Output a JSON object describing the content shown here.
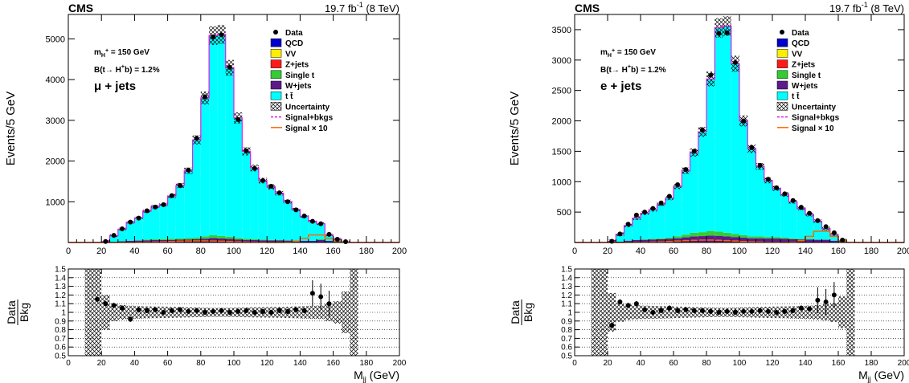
{
  "chart_data": [
    {
      "type": "bar",
      "header_left": "CMS",
      "header_lumi": "19.7 fb",
      "header_lumi_exp": "-1",
      "header_energy": " (8 TeV)",
      "ylabel": "Events/5 GeV",
      "ratio_ylabel_num": "Data",
      "ratio_ylabel_den": "Bkg",
      "xlabel": "M",
      "xlabel_sub": "jj",
      "xlabel_unit": " (GeV)",
      "annotations": {
        "mass": "m",
        "mass_sub": "H",
        "mass_sup": "+",
        "mass_rest": " = 150 GeV",
        "br": "B(t→ H",
        "br_sup": "+",
        "br_rest": "b) = 1.2%",
        "channel": "μ + jets"
      },
      "xlim": [
        0,
        200
      ],
      "ylim": [
        0,
        5600
      ],
      "ratio_ylim": [
        0.5,
        1.5
      ],
      "xticks": [
        0,
        20,
        40,
        60,
        80,
        100,
        120,
        140,
        160,
        180,
        200
      ],
      "yticks": [
        1000,
        2000,
        3000,
        4000,
        5000
      ],
      "ratio_yticks": [
        0.5,
        0.6,
        0.7,
        0.8,
        0.9,
        1,
        1.1,
        1.2,
        1.3,
        1.4,
        1.5
      ],
      "ratio_ytick_labels": [
        "0.5",
        "0.6",
        "0.7",
        "0.8",
        "0.9",
        "1",
        "1.1",
        "1.2",
        "1.3",
        "1.4",
        "1.5"
      ],
      "legend": [
        {
          "label": "Data",
          "kind": "marker",
          "color": "#000000"
        },
        {
          "label": "QCD",
          "kind": "fill",
          "color": "#0000cc"
        },
        {
          "label": "VV",
          "kind": "fill",
          "color": "#ffee00"
        },
        {
          "label": "Z+jets",
          "kind": "fill",
          "color": "#ff1a1a"
        },
        {
          "label": "Single t",
          "kind": "fill",
          "color": "#33cc33"
        },
        {
          "label": "W+jets",
          "kind": "fill",
          "color": "#5c1a8c"
        },
        {
          "label": "t t̄",
          "kind": "fill",
          "color": "#00ffff"
        },
        {
          "label": "Uncertainty",
          "kind": "hatch",
          "color": "#000000"
        },
        {
          "label": "Signal+bkgs",
          "kind": "dash",
          "color": "#e61ae6"
        },
        {
          "label": "Signal × 10",
          "kind": "line",
          "color": "#ff6600"
        }
      ],
      "bin_edges_start": 0,
      "bin_width": 5,
      "ttbar": [
        0,
        0,
        0,
        0,
        20,
        150,
        300,
        450,
        550,
        700,
        800,
        850,
        1050,
        1300,
        1650,
        2400,
        3400,
        4900,
        4950,
        4150,
        2950,
        2150,
        1750,
        1450,
        1300,
        1150,
        950,
        760,
        600,
        480,
        380,
        140,
        60,
        10,
        0,
        0,
        0,
        0,
        0,
        0
      ],
      "others": [
        0,
        0,
        0,
        0,
        4,
        15,
        30,
        45,
        55,
        70,
        80,
        80,
        90,
        100,
        110,
        120,
        150,
        180,
        160,
        140,
        110,
        90,
        80,
        70,
        65,
        60,
        55,
        50,
        40,
        40,
        80,
        40,
        20,
        5,
        0,
        0,
        0,
        0,
        0,
        0
      ],
      "data": [
        0,
        0,
        0,
        0,
        25,
        175,
        335,
        500,
        600,
        780,
        870,
        930,
        1150,
        1400,
        1780,
        2560,
        3580,
        5050,
        5100,
        4300,
        3020,
        2250,
        1820,
        1520,
        1380,
        1220,
        1000,
        800,
        650,
        520,
        460,
        200,
        80,
        20,
        0,
        0,
        0,
        0,
        0,
        0
      ],
      "ratio_x": [
        17.5,
        22.5,
        27.5,
        32.5,
        37.5,
        42.5,
        47.5,
        52.5,
        57.5,
        62.5,
        67.5,
        72.5,
        77.5,
        82.5,
        87.5,
        92.5,
        97.5,
        102.5,
        107.5,
        112.5,
        117.5,
        122.5,
        127.5,
        132.5,
        137.5,
        142.5,
        147.5,
        152.5,
        157.5
      ],
      "ratio": [
        1.15,
        1.1,
        1.08,
        1.05,
        0.92,
        1.03,
        1.02,
        1.03,
        1.0,
        1.02,
        1.03,
        1.01,
        1.02,
        1.0,
        1.01,
        1.02,
        1.0,
        1.01,
        1.02,
        1.0,
        1.01,
        1.0,
        1.02,
        1.01,
        1.03,
        1.02,
        1.22,
        1.18,
        1.1
      ]
    },
    {
      "type": "bar",
      "header_left": "CMS",
      "header_lumi": "19.7 fb",
      "header_lumi_exp": "-1",
      "header_energy": " (8 TeV)",
      "ylabel": "Events/5 GeV",
      "ratio_ylabel_num": "Data",
      "ratio_ylabel_den": "Bkg",
      "xlabel": "M",
      "xlabel_sub": "jj",
      "xlabel_unit": " (GeV)",
      "annotations": {
        "mass": "m",
        "mass_sub": "H",
        "mass_sup": "+",
        "mass_rest": " = 150 GeV",
        "br": "B(t→ H",
        "br_sup": "+",
        "br_rest": "b) = 1.2%",
        "channel": "e + jets"
      },
      "xlim": [
        0,
        200
      ],
      "ylim": [
        0,
        3750
      ],
      "ratio_ylim": [
        0.5,
        1.5
      ],
      "xticks": [
        0,
        20,
        40,
        60,
        80,
        100,
        120,
        140,
        160,
        180,
        200
      ],
      "yticks": [
        500,
        1000,
        1500,
        2000,
        2500,
        3000,
        3500
      ],
      "ratio_yticks": [
        0.5,
        0.6,
        0.7,
        0.8,
        0.9,
        1,
        1.1,
        1.2,
        1.3,
        1.4,
        1.5
      ],
      "ratio_ytick_labels": [
        "0.5",
        "0.6",
        "0.7",
        "0.8",
        "0.9",
        "1",
        "1.1",
        "1.2",
        "1.3",
        "1.4",
        "1.5"
      ],
      "legend": [
        {
          "label": "Data",
          "kind": "marker",
          "color": "#000000"
        },
        {
          "label": "QCD",
          "kind": "fill",
          "color": "#0000cc"
        },
        {
          "label": "VV",
          "kind": "fill",
          "color": "#ffee00"
        },
        {
          "label": "Z+jets",
          "kind": "fill",
          "color": "#ff1a1a"
        },
        {
          "label": "Single t",
          "kind": "fill",
          "color": "#33cc33"
        },
        {
          "label": "W+jets",
          "kind": "fill",
          "color": "#5c1a8c"
        },
        {
          "label": "t t̄",
          "kind": "fill",
          "color": "#00ffff"
        },
        {
          "label": "Uncertainty",
          "kind": "hatch",
          "color": "#000000"
        },
        {
          "label": "Signal+bkgs",
          "kind": "dash",
          "color": "#e61ae6"
        },
        {
          "label": "Signal × 10",
          "kind": "line",
          "color": "#ff6600"
        }
      ],
      "bin_edges_start": 0,
      "bin_width": 5,
      "ttbar": [
        0,
        0,
        0,
        0,
        15,
        120,
        250,
        360,
        430,
        480,
        560,
        650,
        820,
        1050,
        1320,
        1650,
        2500,
        3350,
        3400,
        2800,
        1880,
        1440,
        1150,
        930,
        800,
        710,
        600,
        500,
        400,
        300,
        180,
        100,
        20,
        0,
        0,
        0,
        0,
        0,
        0,
        0
      ],
      "others": [
        0,
        0,
        0,
        0,
        3,
        15,
        30,
        40,
        50,
        60,
        70,
        80,
        100,
        130,
        160,
        170,
        190,
        180,
        160,
        140,
        120,
        100,
        100,
        90,
        90,
        80,
        70,
        60,
        60,
        50,
        50,
        30,
        10,
        0,
        0,
        0,
        0,
        0,
        0,
        0
      ],
      "data": [
        0,
        0,
        0,
        0,
        20,
        140,
        300,
        450,
        500,
        560,
        650,
        760,
        950,
        1200,
        1500,
        1850,
        2750,
        3440,
        3450,
        2960,
        2000,
        1560,
        1270,
        1040,
        900,
        800,
        690,
        580,
        480,
        360,
        260,
        160,
        40,
        0,
        0,
        0,
        0,
        0,
        0,
        0
      ],
      "ratio_x": [
        22.5,
        27.5,
        32.5,
        37.5,
        42.5,
        47.5,
        52.5,
        57.5,
        62.5,
        67.5,
        72.5,
        77.5,
        82.5,
        87.5,
        92.5,
        97.5,
        102.5,
        107.5,
        112.5,
        117.5,
        122.5,
        127.5,
        132.5,
        137.5,
        142.5,
        147.5,
        152.5,
        157.5
      ],
      "ratio": [
        0.85,
        1.12,
        1.08,
        1.1,
        1.03,
        1.0,
        1.02,
        1.05,
        1.02,
        1.03,
        1.02,
        1.02,
        1.01,
        1.0,
        1.01,
        1.0,
        1.01,
        1.01,
        1.02,
        1.01,
        1.0,
        1.01,
        1.02,
        1.05,
        1.04,
        1.14,
        1.12,
        1.2
      ]
    }
  ]
}
